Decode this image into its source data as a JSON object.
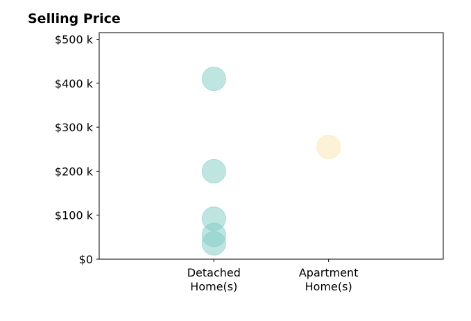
{
  "chart_data": {
    "type": "scatter",
    "title": "Selling Price",
    "xlabel": "",
    "ylabel": "",
    "categories": [
      "Detached\nHome(s)",
      "Apartment\nHome(s)"
    ],
    "ylim": [
      0,
      515000
    ],
    "yticks": [
      {
        "value": 0,
        "label": "$0"
      },
      {
        "value": 100000,
        "label": "$100 k"
      },
      {
        "value": 200000,
        "label": "$200 k"
      },
      {
        "value": 300000,
        "label": "$300 k"
      },
      {
        "value": 400000,
        "label": "$400 k"
      },
      {
        "value": 500000,
        "label": "$500 k"
      }
    ],
    "grid": false,
    "points": [
      {
        "category": "Detached\nHome(s)",
        "y": 410000,
        "color": "#80cbc4"
      },
      {
        "category": "Detached\nHome(s)",
        "y": 200000,
        "color": "#80cbc4"
      },
      {
        "category": "Detached\nHome(s)",
        "y": 92000,
        "color": "#80cbc4"
      },
      {
        "category": "Detached\nHome(s)",
        "y": 55000,
        "color": "#80cbc4"
      },
      {
        "category": "Detached\nHome(s)",
        "y": 36000,
        "color": "#80cbc4"
      },
      {
        "category": "Apartment\nHome(s)",
        "y": 255000,
        "color": "#fce4b0"
      }
    ],
    "colors": {
      "detached": "#80cbc4",
      "apartment": "#fce4b0"
    }
  }
}
